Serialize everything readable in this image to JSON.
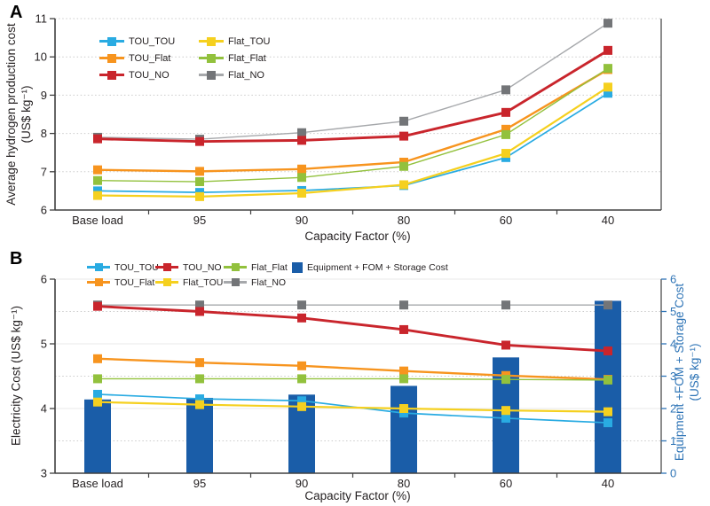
{
  "figure": {
    "panel_a_label": "A",
    "panel_b_label": "B"
  },
  "chart_data": [
    {
      "id": "A",
      "type": "line",
      "title": "",
      "xlabel": "Capacity Factor (%)",
      "ylabel": "Average hydrogen production cost (US$ kg⁻¹)",
      "ylabel_lines": [
        "Average hydrogen production cost",
        "(US$ kg⁻¹)"
      ],
      "categories": [
        "Base load",
        "95",
        "90",
        "80",
        "60",
        "40"
      ],
      "ylim": [
        6,
        11
      ],
      "yticks": [
        6,
        7,
        8,
        9,
        10,
        11
      ],
      "grid": "light dotted horizontal at 7,8,9,10,11",
      "legend_position": "top-left inside plot, 2 columns",
      "series": [
        {
          "name": "TOU_TOU",
          "color": "#29ABE2",
          "values": [
            6.5,
            6.46,
            6.51,
            6.64,
            7.37,
            9.05
          ]
        },
        {
          "name": "TOU_Flat",
          "color": "#F7941E",
          "values": [
            7.05,
            7.01,
            7.07,
            7.25,
            8.11,
            9.67
          ]
        },
        {
          "name": "TOU_NO",
          "color": "#C9252C",
          "values": [
            7.86,
            7.79,
            7.82,
            7.93,
            8.55,
            10.17
          ]
        },
        {
          "name": "Flat_TOU",
          "color": "#F5D01F",
          "values": [
            6.38,
            6.35,
            6.44,
            6.66,
            7.48,
            9.21
          ]
        },
        {
          "name": "Flat_Flat",
          "color": "#92C13D",
          "values": [
            6.77,
            6.74,
            6.85,
            7.14,
            7.97,
            9.7
          ]
        },
        {
          "name": "Flat_NO",
          "color": "#737578",
          "line_color": "#A6A8AB",
          "values": [
            7.9,
            7.85,
            8.02,
            8.32,
            9.14,
            10.88
          ]
        }
      ]
    },
    {
      "id": "B",
      "type": "line+bar",
      "title": "",
      "xlabel": "Capacity Factor (%)",
      "ylabel_left": "Electricity Cost (US$ kg⁻¹)",
      "ylabel_right": "Equipment +FOM + Storage Cost (US$ kg⁻¹)",
      "ylabel_right_lines": [
        "Equipment +FOM + Storage Cost",
        "(US$ kg⁻¹)"
      ],
      "categories": [
        "Base load",
        "95",
        "90",
        "80",
        "60",
        "40"
      ],
      "ylim_left": [
        3,
        6
      ],
      "yticks_left": [
        3,
        4,
        5,
        6
      ],
      "ylim_right": [
        0,
        6
      ],
      "yticks_right": [
        0,
        1,
        2,
        3,
        4,
        5,
        6
      ],
      "right_axis_color": "#2E74B6",
      "grid": "light solid at 4,5,6; dotted at 3.5,4.5,5.5",
      "legend_position": "top inside, 2 rows",
      "series": [
        {
          "name": "TOU_TOU",
          "color": "#29ABE2",
          "axis": "left",
          "values": [
            4.22,
            4.15,
            4.12,
            3.93,
            3.85,
            3.78
          ]
        },
        {
          "name": "TOU_Flat",
          "color": "#F7941E",
          "axis": "left",
          "values": [
            4.77,
            4.71,
            4.66,
            4.58,
            4.51,
            4.45
          ]
        },
        {
          "name": "TOU_NO",
          "color": "#C9252C",
          "axis": "left",
          "values": [
            5.58,
            5.5,
            5.4,
            5.22,
            4.98,
            4.89
          ]
        },
        {
          "name": "Flat_TOU",
          "color": "#F5D01F",
          "axis": "left",
          "values": [
            4.1,
            4.06,
            4.03,
            4.0,
            3.97,
            3.95
          ]
        },
        {
          "name": "Flat_Flat",
          "color": "#92C13D",
          "axis": "left",
          "values": [
            4.46,
            4.46,
            4.46,
            4.46,
            4.45,
            4.44
          ]
        },
        {
          "name": "Flat_NO",
          "color": "#737578",
          "line_color": "#A6A8AB",
          "axis": "left",
          "values": [
            5.6,
            5.6,
            5.6,
            5.6,
            5.6,
            5.6
          ]
        }
      ],
      "bar_series": {
        "name": "Equipment + FOM + Storage Cost",
        "color": "#1A5DA8",
        "axis": "right",
        "values": [
          2.28,
          2.33,
          2.43,
          2.7,
          3.58,
          5.33
        ]
      }
    }
  ]
}
